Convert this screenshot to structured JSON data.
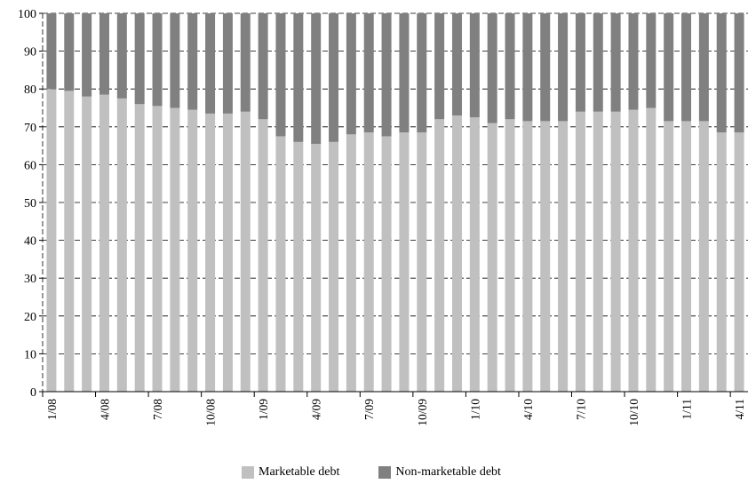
{
  "chart_data": {
    "type": "bar",
    "stacked": true,
    "ylim": [
      0,
      100
    ],
    "yticks": [
      0,
      10,
      20,
      30,
      40,
      50,
      60,
      70,
      80,
      90,
      100
    ],
    "grid": "horizontal dashed",
    "x_tick_labels": [
      "1/08",
      "4/08",
      "7/08",
      "10/08",
      "1/09",
      "4/09",
      "7/09",
      "10/09",
      "1/10",
      "4/10",
      "7/10",
      "10/10",
      "1/11",
      "4/11"
    ],
    "x_tick_every": 3,
    "series": [
      {
        "name": "Marketable debt",
        "color": "#c0c0c0",
        "values": [
          80,
          79.5,
          78,
          78.5,
          77.5,
          76,
          75.5,
          75,
          74.5,
          73.5,
          73.5,
          74,
          72,
          67.5,
          66,
          65.5,
          66,
          68,
          68.5,
          67.5,
          68.5,
          68.5,
          72,
          73,
          72.5,
          71,
          72,
          71.5,
          71.5,
          71.5,
          74,
          74,
          74,
          74.5,
          75,
          71.5,
          71.5,
          71.5,
          68.5,
          68.5
        ]
      },
      {
        "name": "Non-marketable debt",
        "color": "#808080",
        "values": [
          20,
          20.5,
          22,
          21.5,
          22.5,
          24,
          24.5,
          25,
          25.5,
          26.5,
          26.5,
          26,
          28,
          32.5,
          34,
          34.5,
          34,
          32,
          31.5,
          32.5,
          31.5,
          31.5,
          28,
          27,
          27.5,
          29,
          28,
          28.5,
          28.5,
          28.5,
          26,
          26,
          26,
          25.5,
          25,
          28.5,
          28.5,
          28.5,
          31.5,
          31.5
        ]
      }
    ],
    "legend": {
      "position": "bottom-center"
    }
  }
}
